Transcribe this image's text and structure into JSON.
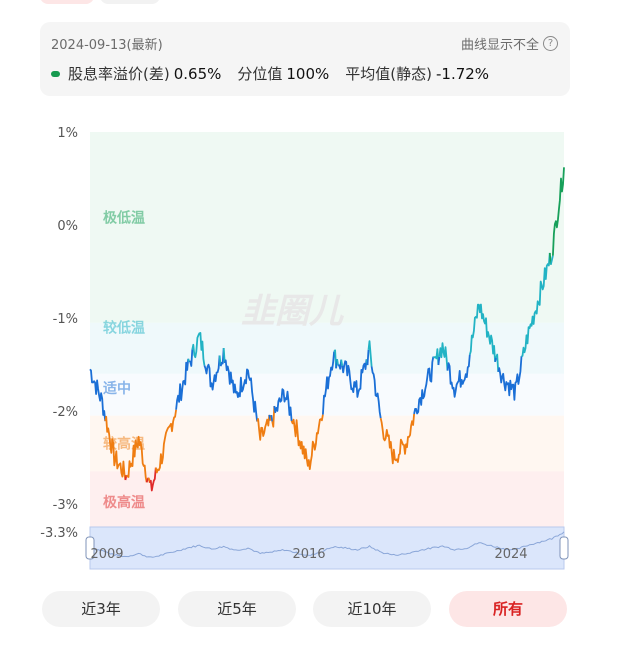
{
  "info": {
    "date": "2024-09-13(最新)",
    "curve_note": "曲线显示不全",
    "metrics": [
      {
        "label": "股息率溢价(差)",
        "value": "0.65%"
      },
      {
        "label": "分位值",
        "value": "100%"
      },
      {
        "label": "平均值(静态)",
        "value": "-1.72%"
      }
    ]
  },
  "chart_data": {
    "type": "line",
    "y_ticks": [
      "1%",
      "0%",
      "-1%",
      "-2%",
      "-3%",
      "-3.3%"
    ],
    "ylim": [
      -3.3,
      1.0
    ],
    "zones": [
      "极低温",
      "较低温",
      "适中",
      "较高温",
      "极高温"
    ],
    "navigator_labels": [
      "2009",
      "2016",
      "2024"
    ],
    "colors": {
      "very_low": "#17a05a",
      "low": "#22b3c4",
      "medium": "#1b6fd6",
      "high": "#ef7d12",
      "very_high": "#e02a2a"
    },
    "series": [
      {
        "x": [
          "2008-04",
          "2008-10",
          "2009-03",
          "2009-08",
          "2010-01",
          "2010-06",
          "2010-11",
          "2011-04",
          "2011-09",
          "2012-03",
          "2012-08",
          "2013-01",
          "2013-06",
          "2013-11",
          "2014-04",
          "2014-09",
          "2015-02",
          "2015-07",
          "2015-12",
          "2016-05",
          "2016-10",
          "2017-03",
          "2017-08",
          "2018-01",
          "2018-06",
          "2018-11",
          "2019-04",
          "2019-09",
          "2020-02",
          "2020-07",
          "2020-12",
          "2021-05",
          "2021-10",
          "2022-03",
          "2022-08",
          "2023-01",
          "2023-06",
          "2023-11",
          "2024-04",
          "2024-09"
        ],
        "values": [
          -1.55,
          -1.9,
          -2.5,
          -2.7,
          -2.3,
          -2.85,
          -2.45,
          -2.0,
          -1.55,
          -1.2,
          -1.7,
          -1.35,
          -1.85,
          -1.55,
          -2.3,
          -2.1,
          -1.8,
          -2.2,
          -2.6,
          -2.05,
          -1.4,
          -1.55,
          -1.8,
          -1.35,
          -2.15,
          -2.5,
          -2.35,
          -1.9,
          -1.6,
          -1.3,
          -1.75,
          -1.55,
          -0.85,
          -1.25,
          -1.65,
          -1.8,
          -1.2,
          -0.75,
          -0.3,
          0.62
        ]
      }
    ]
  },
  "buttons": [
    "近3年",
    "近5年",
    "近10年",
    "所有"
  ],
  "active_button": "所有"
}
